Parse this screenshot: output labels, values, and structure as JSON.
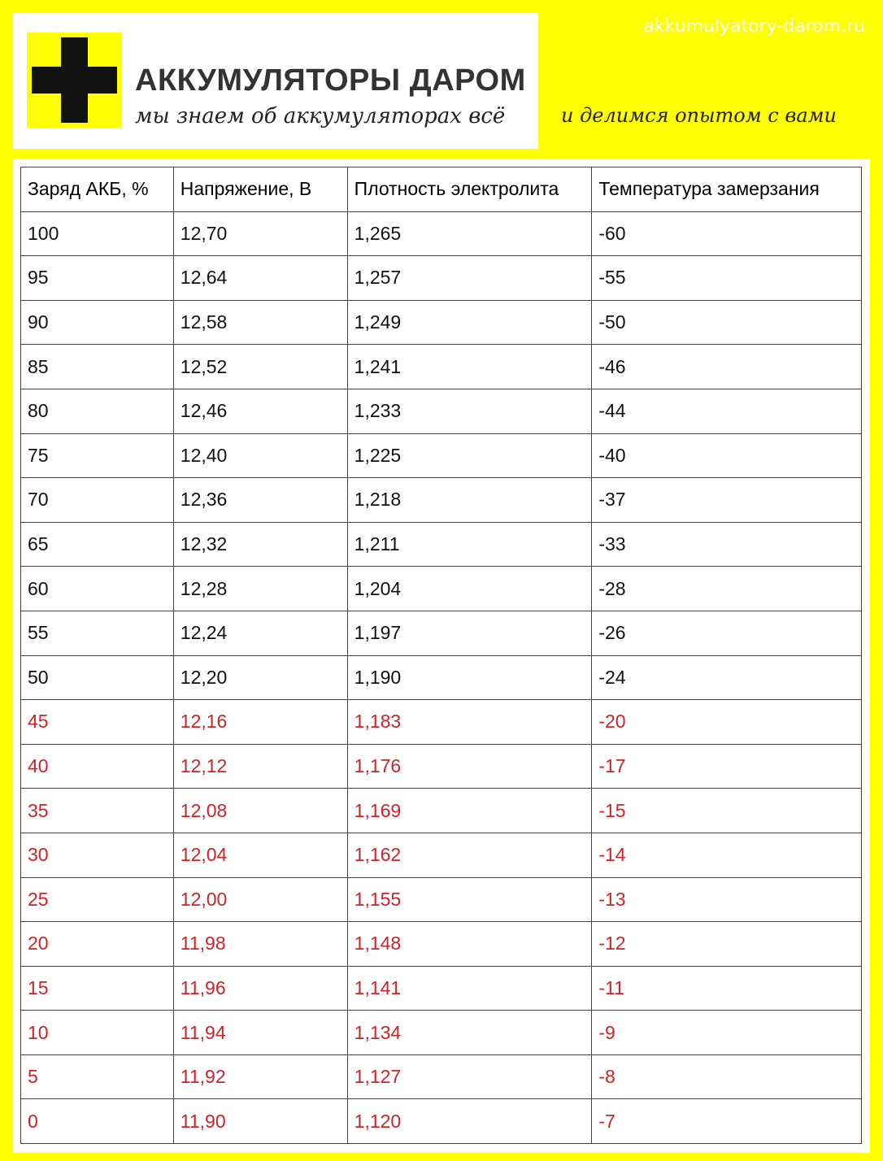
{
  "header": {
    "site": "akkumulyatory-darom.ru",
    "title": "АККУМУЛЯТОРЫ ДАРОМ",
    "tagline": "мы знаем об аккумуляторах всё",
    "tagline2": "и делимся опытом с вами"
  },
  "table": {
    "columns": [
      "Заряд АКБ, %",
      "Напряжение, В",
      "Плотность электролита",
      "Температура замерзания"
    ],
    "row_groups": [
      {
        "color": "#111111",
        "rows": [
          [
            "100",
            "12,70",
            "1,265",
            "-60"
          ],
          [
            "95",
            "12,64",
            "1,257",
            "-55"
          ],
          [
            "90",
            "12,58",
            "1,249",
            "-50"
          ],
          [
            "85",
            "12,52",
            "1,241",
            "-46"
          ],
          [
            "80",
            "12,46",
            "1,233",
            "-44"
          ],
          [
            "75",
            "12,40",
            "1,225",
            "-40"
          ],
          [
            "70",
            "12,36",
            "1,218",
            "-37"
          ],
          [
            "65",
            "12,32",
            "1,211",
            "-33"
          ],
          [
            "60",
            "12,28",
            "1,204",
            "-28"
          ],
          [
            "55",
            "12,24",
            "1,197",
            "-26"
          ],
          [
            "50",
            "12,20",
            "1,190",
            "-24"
          ]
        ]
      },
      {
        "color": "#d42027",
        "rows": [
          [
            "45",
            "12,16",
            "1,183",
            "-20"
          ],
          [
            "40",
            "12,12",
            "1,176",
            "-17"
          ],
          [
            "35",
            "12,08",
            "1,169",
            "-15"
          ],
          [
            "30",
            "12,04",
            "1,162",
            "-14"
          ],
          [
            "25",
            "12,00",
            "1,155",
            "-13"
          ],
          [
            "20",
            "11,98",
            "1,148",
            "-12"
          ],
          [
            "15",
            "11,96",
            "1,141",
            "-11"
          ],
          [
            "10",
            "11,94",
            "1,134",
            "-9"
          ],
          [
            "5",
            "11,92",
            "1,127",
            "-8"
          ],
          [
            "0",
            "11,90",
            "1,120",
            "-7"
          ]
        ]
      }
    ]
  }
}
